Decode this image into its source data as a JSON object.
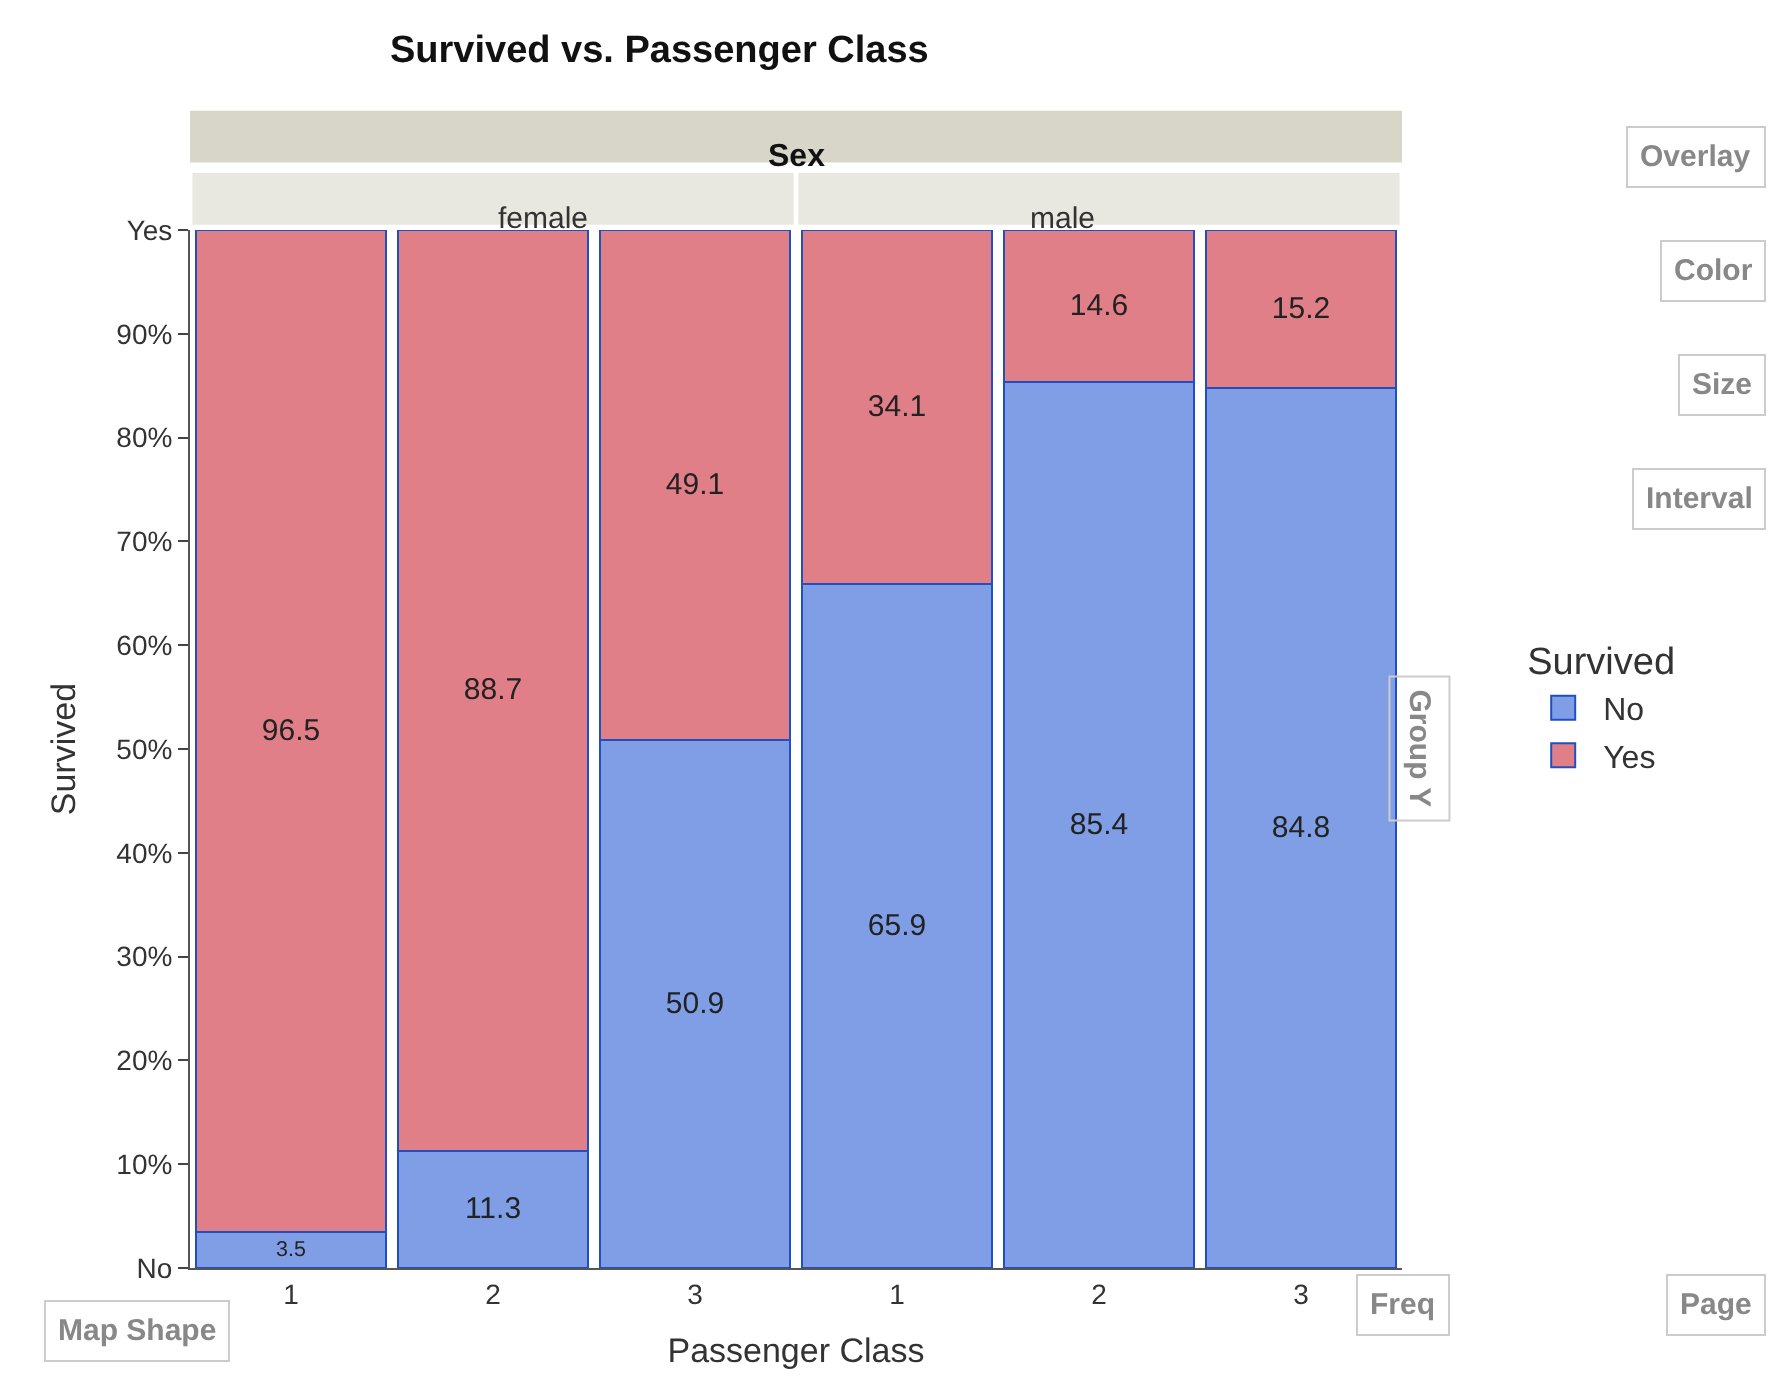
{
  "chart_data": {
    "type": "bar",
    "title": "Survived vs. Passenger Class",
    "subtitle": "Sex",
    "xlabel": "Passenger Class",
    "ylabel": "Survived",
    "legend_title": "Survived",
    "categories": [
      "1",
      "2",
      "3",
      "1",
      "2",
      "3"
    ],
    "stacked": true,
    "data_labels": true,
    "legend": "right",
    "ylim": [
      0,
      100
    ],
    "yticks": [
      {
        "value": 0,
        "label": "No"
      },
      {
        "value": 10,
        "label": "10%"
      },
      {
        "value": 20,
        "label": "20%"
      },
      {
        "value": 30,
        "label": "30%"
      },
      {
        "value": 40,
        "label": "40%"
      },
      {
        "value": 50,
        "label": "50%"
      },
      {
        "value": 60,
        "label": "60%"
      },
      {
        "value": 70,
        "label": "70%"
      },
      {
        "value": 80,
        "label": "80%"
      },
      {
        "value": 90,
        "label": "90%"
      },
      {
        "value": 100,
        "label": "Yes"
      }
    ],
    "series": [
      {
        "name": "No",
        "color": "#7f9ee5",
        "values": [
          3.5,
          11.3,
          50.9,
          65.9,
          85.4,
          84.8
        ]
      },
      {
        "name": "Yes",
        "color": "#e07f88",
        "values": [
          96.5,
          88.7,
          49.1,
          34.1,
          14.6,
          15.2
        ]
      }
    ],
    "annotations": [
      "female",
      "male",
      "Overlay",
      "Color",
      "Size",
      "Interval",
      "Group Y",
      "Map Shape",
      "Freq",
      "Page"
    ]
  }
}
